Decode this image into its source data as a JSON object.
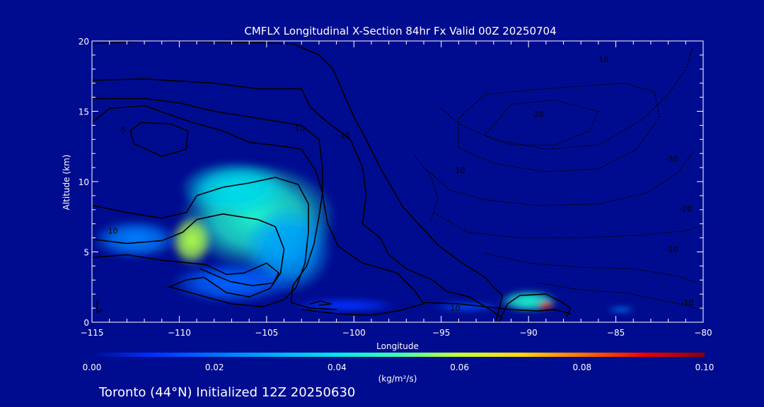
{
  "chart_data": {
    "type": "heatmap",
    "title": "CMFLX Longitudinal X-Section 84hr  Fx Valid 00Z 20250704",
    "xlabel": "Longitude",
    "ylabel": "Altitude (km)",
    "xlim": [
      -115,
      -80
    ],
    "ylim": [
      0,
      20
    ],
    "x_ticks": [
      -115,
      -110,
      -105,
      -100,
      -95,
      -90,
      -85,
      -80
    ],
    "x_tick_labels": [
      "−115",
      "−110",
      "−105",
      "−100",
      "−95",
      "−90",
      "−85",
      "−80"
    ],
    "y_ticks": [
      0,
      5,
      10,
      15,
      20
    ],
    "y_tick_labels": [
      "0",
      "5",
      "10",
      "15",
      "20"
    ],
    "colorbar": {
      "min": 0.0,
      "max": 0.1,
      "ticks": [
        0.0,
        0.02,
        0.04,
        0.06,
        0.08,
        0.1
      ],
      "tick_labels": [
        "0.00",
        "0.02",
        "0.04",
        "0.06",
        "0.08",
        "0.10"
      ],
      "unit_label": "(kg/m²/s)"
    },
    "blobs": [
      {
        "lon": -105.5,
        "alt": 7.5,
        "rx": 4.5,
        "ry": 3.8,
        "value": 0.045
      },
      {
        "lon": -106.8,
        "alt": 9.5,
        "rx": 3.2,
        "ry": 2.0,
        "value": 0.038
      },
      {
        "lon": -103.8,
        "alt": 5.2,
        "rx": 2.6,
        "ry": 3.2,
        "value": 0.028
      },
      {
        "lon": -109.3,
        "alt": 5.8,
        "rx": 1.2,
        "ry": 1.8,
        "value": 0.058
      },
      {
        "lon": -112.5,
        "alt": 5.9,
        "rx": 2.5,
        "ry": 1.4,
        "value": 0.022
      },
      {
        "lon": -107.0,
        "alt": 2.8,
        "rx": 3.5,
        "ry": 1.5,
        "value": 0.018
      },
      {
        "lon": -100.5,
        "alt": 1.2,
        "rx": 3.0,
        "ry": 0.5,
        "value": 0.01
      },
      {
        "lon": -90.0,
        "alt": 1.5,
        "rx": 1.7,
        "ry": 0.8,
        "value": 0.045
      },
      {
        "lon": -89.0,
        "alt": 1.2,
        "rx": 0.5,
        "ry": 0.3,
        "value": 0.088
      },
      {
        "lon": -93.5,
        "alt": 1.1,
        "rx": 2.0,
        "ry": 0.3,
        "value": 0.015
      },
      {
        "lon": -84.7,
        "alt": 0.9,
        "rx": 0.8,
        "ry": 0.2,
        "value": 0.022
      }
    ],
    "contours": [
      {
        "style": "solid",
        "points": [
          [
            -115,
            19.8
          ],
          [
            -112,
            20
          ],
          [
            -106,
            19.9
          ],
          [
            -103.5,
            19.8
          ],
          [
            -102,
            19
          ],
          [
            -101.2,
            18
          ],
          [
            -100,
            14.6
          ],
          [
            -99.3,
            13
          ],
          [
            -98.5,
            11
          ],
          [
            -97.8,
            9.5
          ],
          [
            -97.2,
            8.2
          ],
          [
            -96.3,
            7
          ],
          [
            -95.2,
            5.5
          ],
          [
            -93.8,
            4.2
          ],
          [
            -92.5,
            3.2
          ],
          [
            -92,
            2.5
          ],
          [
            -91.5,
            1.9
          ],
          [
            -91.7,
            0.8
          ],
          [
            -91.9,
            0
          ]
        ]
      },
      {
        "style": "solid",
        "points": [
          [
            -115,
            17.2
          ],
          [
            -112,
            17.3
          ],
          [
            -108,
            17.0
          ],
          [
            -105.5,
            16.6
          ],
          [
            -103,
            16.6
          ],
          [
            -102.5,
            15.3
          ],
          [
            -101.5,
            14.2
          ],
          [
            -100.2,
            13
          ],
          [
            -99.5,
            11
          ],
          [
            -99.3,
            9
          ],
          [
            -99.5,
            7
          ],
          [
            -98.5,
            6
          ],
          [
            -98,
            4.8
          ],
          [
            -97,
            3.8
          ],
          [
            -95.5,
            3
          ],
          [
            -94.7,
            2.2
          ],
          [
            -93.4,
            1.8
          ],
          [
            -92.2,
            0.9
          ],
          [
            -91.5,
            0.3
          ]
        ],
        "label": "10",
        "label_at": [
          -100.5,
          13.3
        ]
      },
      {
        "style": "solid",
        "points": [
          [
            -115,
            15.9
          ],
          [
            -112,
            15.9
          ],
          [
            -110,
            15.6
          ],
          [
            -108,
            15.0
          ],
          [
            -105,
            14.4
          ],
          [
            -103,
            14.0
          ],
          [
            -102,
            13.0
          ],
          [
            -101.8,
            11
          ],
          [
            -101.8,
            9
          ],
          [
            -101.5,
            7
          ],
          [
            -100.9,
            5.4
          ],
          [
            -99.5,
            4.2
          ],
          [
            -97.5,
            3.5
          ],
          [
            -96.5,
            2.2
          ],
          [
            -96,
            1.3
          ],
          [
            -97.5,
            0.8
          ],
          [
            -99,
            0.5
          ],
          [
            -101,
            0.6
          ],
          [
            -103,
            0.9
          ]
        ]
      },
      {
        "style": "solid",
        "points": [
          [
            -115,
            14.2
          ],
          [
            -114,
            15.2
          ],
          [
            -112,
            15.4
          ],
          [
            -109.5,
            14.3
          ],
          [
            -107.5,
            13.6
          ],
          [
            -106,
            12.8
          ],
          [
            -104,
            12.5
          ],
          [
            -103,
            12.3
          ],
          [
            -102.2,
            10.8
          ],
          [
            -101.8,
            9.2
          ],
          [
            -102,
            7.5
          ],
          [
            -102.3,
            5.5
          ],
          [
            -102.7,
            4
          ],
          [
            -103.5,
            2.6
          ],
          [
            -103.6,
            1.4
          ],
          [
            -102.5,
            1.0
          ],
          [
            -101,
            0.9
          ]
        ],
        "label": "10",
        "label_at": [
          -103.1,
          13.8
        ]
      },
      {
        "style": "solid",
        "points": [
          [
            -112.6,
            12.7
          ],
          [
            -112.8,
            13.6
          ],
          [
            -112.2,
            14.2
          ],
          [
            -110.5,
            14.1
          ],
          [
            -109.5,
            13.6
          ],
          [
            -109.6,
            12.3
          ],
          [
            -111,
            11.8
          ],
          [
            -112.6,
            12.7
          ]
        ],
        "label": "5",
        "label_at": [
          -113.2,
          13.7
        ]
      },
      {
        "style": "solid",
        "points": [
          [
            -115,
            8.3
          ],
          [
            -113,
            7.8
          ],
          [
            -111,
            7.4
          ],
          [
            -109.6,
            7.8
          ],
          [
            -109,
            9
          ],
          [
            -107.5,
            9.6
          ],
          [
            -106,
            9.9
          ],
          [
            -104.5,
            10.3
          ],
          [
            -103.2,
            9.8
          ],
          [
            -102.6,
            8.4
          ],
          [
            -102.6,
            6.5
          ],
          [
            -102.8,
            4.2
          ],
          [
            -103.3,
            2.5
          ],
          [
            -104,
            1.6
          ],
          [
            -105.2,
            1.1
          ],
          [
            -107,
            1.3
          ],
          [
            -108.5,
            1.8
          ],
          [
            -110.5,
            2.5
          ]
        ],
        "label": "10",
        "label_at": [
          -113.8,
          6.5
        ]
      },
      {
        "style": "solid",
        "points": [
          [
            -115,
            5.9
          ],
          [
            -113,
            5.6
          ],
          [
            -111,
            5.8
          ],
          [
            -109.8,
            6.4
          ],
          [
            -109,
            7.3
          ],
          [
            -107.5,
            7.7
          ],
          [
            -105.5,
            7.3
          ],
          [
            -104.5,
            6.8
          ],
          [
            -104.0,
            5.2
          ],
          [
            -104.2,
            3.5
          ],
          [
            -104.8,
            2.4
          ],
          [
            -106,
            1.8
          ],
          [
            -107.3,
            2.1
          ],
          [
            -108.6,
            3.2
          ],
          [
            -109.6,
            3.0
          ],
          [
            -110.6,
            2.5
          ]
        ]
      },
      {
        "style": "solid",
        "points": [
          [
            -115,
            4.6
          ],
          [
            -113,
            4.8
          ],
          [
            -111,
            4.4
          ],
          [
            -108.5,
            4.1
          ],
          [
            -107.3,
            3.4
          ],
          [
            -106.3,
            3.5
          ],
          [
            -105,
            4.2
          ],
          [
            -104.3,
            3.5
          ],
          [
            -104.6,
            2.8
          ],
          [
            -105.8,
            2.6
          ],
          [
            -107.1,
            2.9
          ],
          [
            -108.8,
            3.8
          ]
        ]
      },
      {
        "style": "solid",
        "points": [
          [
            -102,
            1.2
          ],
          [
            -101.3,
            1.3
          ],
          [
            -101.9,
            1.5
          ],
          [
            -102.5,
            1.3
          ]
        ]
      },
      {
        "style": "solid",
        "points": [
          [
            -114.7,
            1.5
          ],
          [
            -114.7,
            0.7
          ],
          [
            -114.4,
            0.9
          ]
        ]
      },
      {
        "style": "solid",
        "points": [
          [
            -91.7,
            0
          ],
          [
            -91.2,
            1.3
          ],
          [
            -90.5,
            1.9
          ],
          [
            -89,
            2.0
          ],
          [
            -88.2,
            1.5
          ],
          [
            -87.6,
            1.0
          ],
          [
            -87.8,
            0.4
          ]
        ]
      },
      {
        "style": "solid",
        "points": [
          [
            -96,
            1.4
          ],
          [
            -94,
            1.3
          ],
          [
            -92.5,
            1.1
          ],
          [
            -91,
            0.9
          ],
          [
            -89.5,
            0.8
          ],
          [
            -88.5,
            0.9
          ],
          [
            -87.6,
            0.6
          ]
        ],
        "label": "10",
        "label_at": [
          -94.2,
          1.0
        ]
      },
      {
        "style": "dotted",
        "points": [
          [
            -95,
            15.2
          ],
          [
            -94,
            14.1
          ],
          [
            -92,
            13.0
          ],
          [
            -89,
            12.3
          ],
          [
            -86,
            12.6
          ],
          [
            -83.5,
            14.4
          ],
          [
            -82,
            16.2
          ],
          [
            -81,
            18.0
          ],
          [
            -80.6,
            19.5
          ]
        ],
        "label": "10",
        "label_at": [
          -85.7,
          18.7
        ]
      },
      {
        "style": "dotted",
        "points": [
          [
            -94,
            12.4
          ],
          [
            -92,
            11.3
          ],
          [
            -89,
            10.7
          ],
          [
            -86,
            10.9
          ],
          [
            -83.8,
            12.3
          ],
          [
            -82.5,
            14.6
          ],
          [
            -82.8,
            16.4
          ],
          [
            -84.5,
            17.0
          ],
          [
            -87,
            16.8
          ],
          [
            -90,
            16.5
          ],
          [
            -92.5,
            16.2
          ],
          [
            -94,
            14.5
          ],
          [
            -94,
            12.4
          ]
        ],
        "label": "-20",
        "label_at": [
          -89.5,
          14.8
        ]
      },
      {
        "style": "dotted",
        "points": [
          [
            -92.5,
            13.3
          ],
          [
            -91,
            12.6
          ],
          [
            -88.5,
            12.6
          ],
          [
            -86.5,
            13.6
          ],
          [
            -86,
            15.0
          ],
          [
            -88.5,
            15.8
          ],
          [
            -91,
            15.5
          ],
          [
            -92.5,
            13.3
          ]
        ],
        "label": "-30",
        "label_at": [
          -81.8,
          11.6
        ]
      },
      {
        "style": "dotted",
        "points": [
          [
            -95.8,
            10.8
          ],
          [
            -94.5,
            9.4
          ],
          [
            -92.5,
            8.7
          ],
          [
            -89.5,
            8.3
          ],
          [
            -86,
            8.4
          ],
          [
            -83.2,
            9.2
          ],
          [
            -81.5,
            10.6
          ],
          [
            -80.5,
            12.2
          ]
        ],
        "label": "-20",
        "label_at": [
          -81.0,
          8.1
        ]
      },
      {
        "style": "dotted",
        "points": [
          [
            -95.4,
            7.8
          ],
          [
            -93.5,
            6.4
          ],
          [
            -90.5,
            6.0
          ],
          [
            -87,
            6.0
          ],
          [
            -83.5,
            6.2
          ],
          [
            -81,
            6.5
          ],
          [
            -80.3,
            6.8
          ]
        ],
        "label": "-10",
        "label_at": [
          -81.8,
          5.2
        ]
      },
      {
        "style": "dotted",
        "points": [
          [
            -92.5,
            4.9
          ],
          [
            -90,
            4.2
          ],
          [
            -87,
            3.9
          ],
          [
            -84,
            3.8
          ],
          [
            -81.5,
            3.3
          ],
          [
            -80.3,
            2.8
          ]
        ],
        "label": "-10",
        "label_at": [
          -80.9,
          1.4
        ]
      },
      {
        "style": "dotted",
        "points": [
          [
            -89.5,
            2.8
          ],
          [
            -87,
            2.3
          ],
          [
            -84.5,
            2.1
          ],
          [
            -82.5,
            1.6
          ],
          [
            -81,
            1.2
          ],
          [
            -80.2,
            0.9
          ]
        ]
      },
      {
        "style": "dotted",
        "points": [
          [
            -96.5,
            11.8
          ],
          [
            -95.6,
            10.4
          ],
          [
            -95.2,
            8.8
          ],
          [
            -95.6,
            7.2
          ]
        ],
        "label": "-10",
        "label_at": [
          -94.0,
          10.8
        ]
      }
    ]
  },
  "footer": {
    "text": "Toronto (44°N) Initialized 12Z 20250630"
  }
}
